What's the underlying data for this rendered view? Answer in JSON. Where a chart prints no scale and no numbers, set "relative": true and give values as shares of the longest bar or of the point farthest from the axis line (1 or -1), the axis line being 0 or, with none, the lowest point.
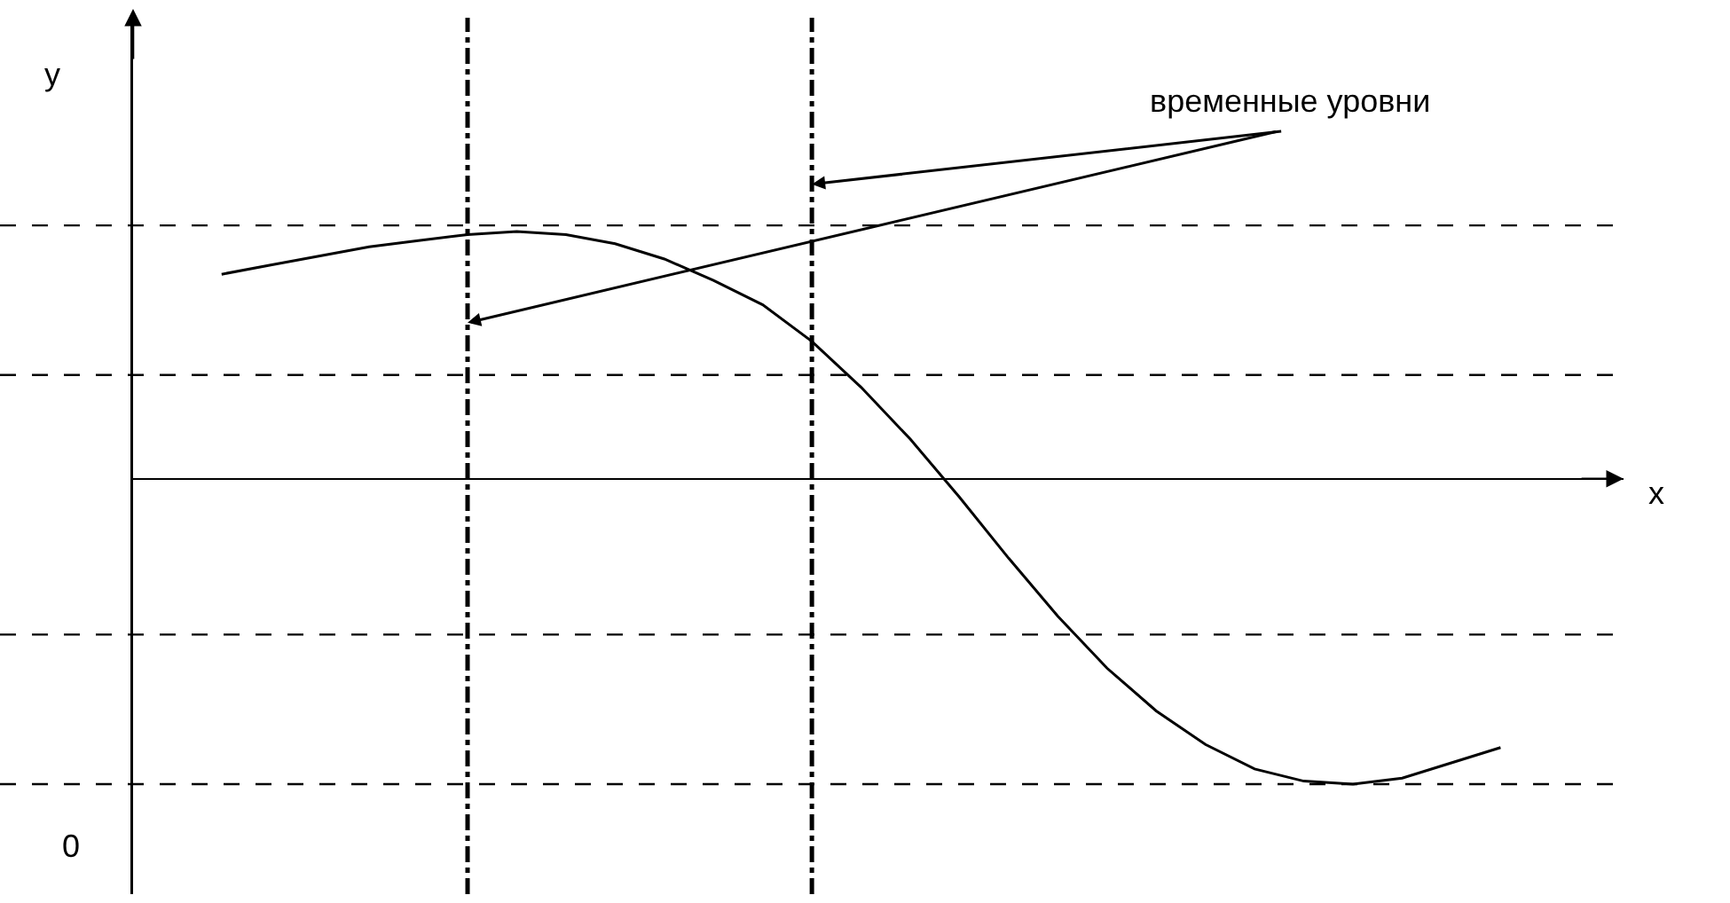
{
  "chart_data": {
    "type": "line",
    "relative": true,
    "categories": [
      null,
      null,
      null,
      null,
      null,
      null,
      null,
      null,
      null,
      null,
      null,
      null,
      null,
      null,
      null,
      null,
      null,
      null,
      null,
      null,
      null,
      null,
      null,
      null,
      null,
      null,
      null
    ],
    "series": [
      {
        "color": "#000000",
        "values": [
          0.67,
          0.7,
          0.73,
          0.76,
          0.78,
          0.8,
          0.81,
          0.8,
          0.77,
          0.72,
          0.65,
          0.57,
          0.45,
          0.3,
          0.13,
          -0.06,
          -0.26,
          -0.45,
          -0.62,
          -0.76,
          -0.87,
          -0.95,
          -0.99,
          -1,
          -0.98,
          -0.93,
          -0.88
        ]
      }
    ],
    "ref_lines": [
      {
        "axis": "y",
        "value": 0.83,
        "color": "#000000",
        "line_style": "dashed"
      },
      {
        "axis": "y",
        "value": 0.34,
        "color": "#000000",
        "line_style": "dashed"
      },
      {
        "axis": "y",
        "value": -0.51,
        "color": "#000000",
        "line_style": "dashed"
      },
      {
        "axis": "y",
        "value": -1.0,
        "color": "#000000",
        "line_style": "dashed"
      }
    ],
    "annotations": [
      "временные уровни",
      "0",
      "y",
      "x"
    ],
    "marker": "none",
    "line_style": "solid"
  }
}
